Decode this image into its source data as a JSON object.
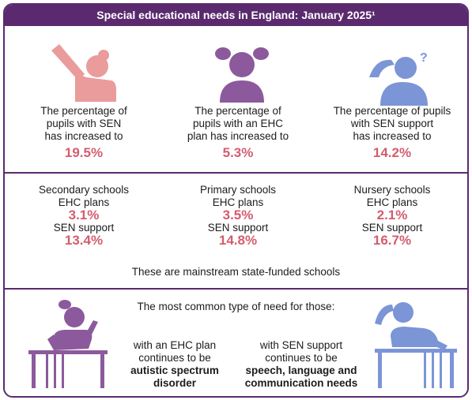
{
  "title": "Special educational needs in England: January 2025¹",
  "stats": [
    {
      "text_lines": [
        "The percentage of",
        "pupils with SEN",
        "has increased to"
      ],
      "value": "19.5%",
      "icon": "raised-hand-figure-icon",
      "color": "#ea9b9b"
    },
    {
      "text_lines": [
        "The percentage of",
        "pupils with an EHC",
        "plan has increased to"
      ],
      "value": "5.3%",
      "icon": "pigtails-figure-icon",
      "color": "#8c5a9c"
    },
    {
      "text_lines": [
        "The percentage of pupils",
        "with SEN support",
        "has increased to"
      ],
      "value": "14.2%",
      "icon": "question-figure-icon",
      "color": "#7b95d6"
    }
  ],
  "schools": [
    {
      "name": "Secondary schools",
      "ehc_label": "EHC plans",
      "ehc_value": "3.1%",
      "sen_label": "SEN support",
      "sen_value": "13.4%"
    },
    {
      "name": "Primary schools",
      "ehc_label": "EHC plans",
      "ehc_value": "3.5%",
      "sen_label": "SEN support",
      "sen_value": "14.8%"
    },
    {
      "name": "Nursery schools",
      "ehc_label": "EHC plans",
      "ehc_value": "2.1%",
      "sen_label": "SEN support",
      "sen_value": "16.7%"
    }
  ],
  "schools_note": "These are mainstream state-funded schools",
  "common_need": {
    "heading": "The most common type of need for those:",
    "ehc": {
      "line1": "with an EHC plan",
      "line2": "continues to be",
      "bold1": "autistic spectrum",
      "bold2": "disorder"
    },
    "sen": {
      "line1": "with SEN support",
      "line2": "continues to be",
      "bold1": "speech, language and",
      "bold2": "communication needs"
    }
  },
  "colors": {
    "accent": "#5b2a6e",
    "value": "#d35d6e",
    "pink": "#ea9b9b",
    "purple": "#8c5a9c",
    "blue": "#7b95d6"
  }
}
